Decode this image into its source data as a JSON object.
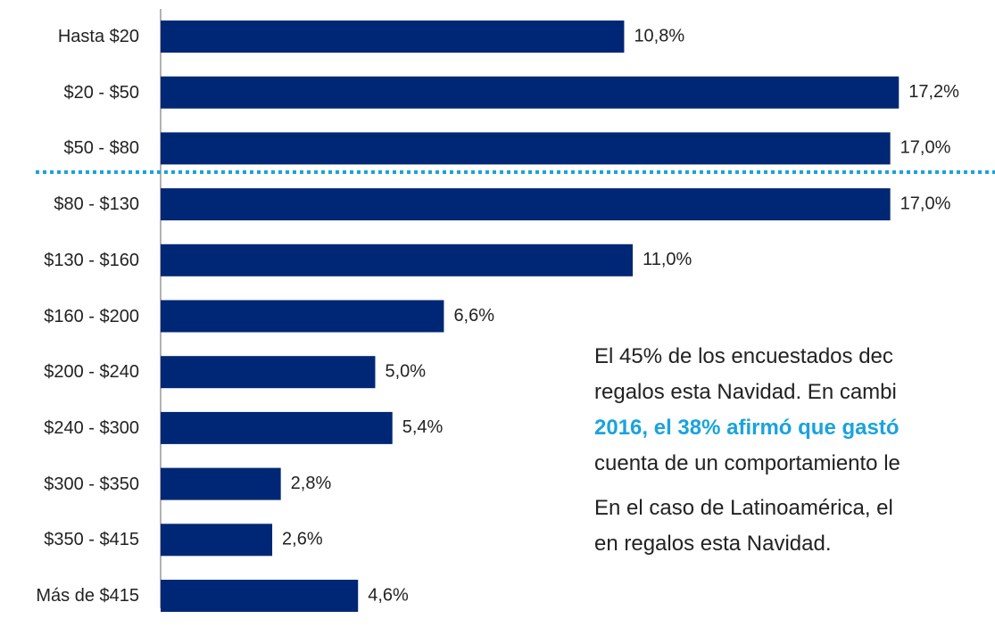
{
  "chart_data": {
    "type": "bar",
    "orientation": "horizontal",
    "categories": [
      "Hasta $20",
      "$20 - $50",
      "$50 - $80",
      "$80 - $130",
      "$130 - $160",
      "$160 - $200",
      "$200 - $240",
      "$240 - $300",
      "$300 - $350",
      "$350 - $415",
      "Más de $415"
    ],
    "values": [
      10.8,
      17.2,
      17.0,
      17.0,
      11.0,
      6.6,
      5.0,
      5.4,
      2.8,
      2.6,
      4.6
    ],
    "value_labels": [
      "10,8%",
      "17,2%",
      "17,0%",
      "17,0%",
      "11,0%",
      "6,6%",
      "5,0%",
      "5,4%",
      "2,8%",
      "2,6%",
      "4,6%"
    ],
    "color": "#002776",
    "xlim": [
      0,
      19.44
    ],
    "divider_color": "#1aa3dc",
    "highlight_color": "#1aa3dc",
    "annotation": [
      [
        {
          "text": "El 45% de los encuestados dec"
        }
      ],
      [
        {
          "text": "regalos esta Navidad. En cambi"
        }
      ],
      [
        {
          "text": "2016, el 38% afirmó que gastó",
          "highlight": true
        }
      ],
      [
        {
          "text": "cuenta de un comportamiento le"
        }
      ],
      [
        {
          "text": "En el caso de Latinoamérica, el"
        }
      ],
      [
        {
          "text": "en regalos esta Navidad."
        }
      ]
    ]
  }
}
